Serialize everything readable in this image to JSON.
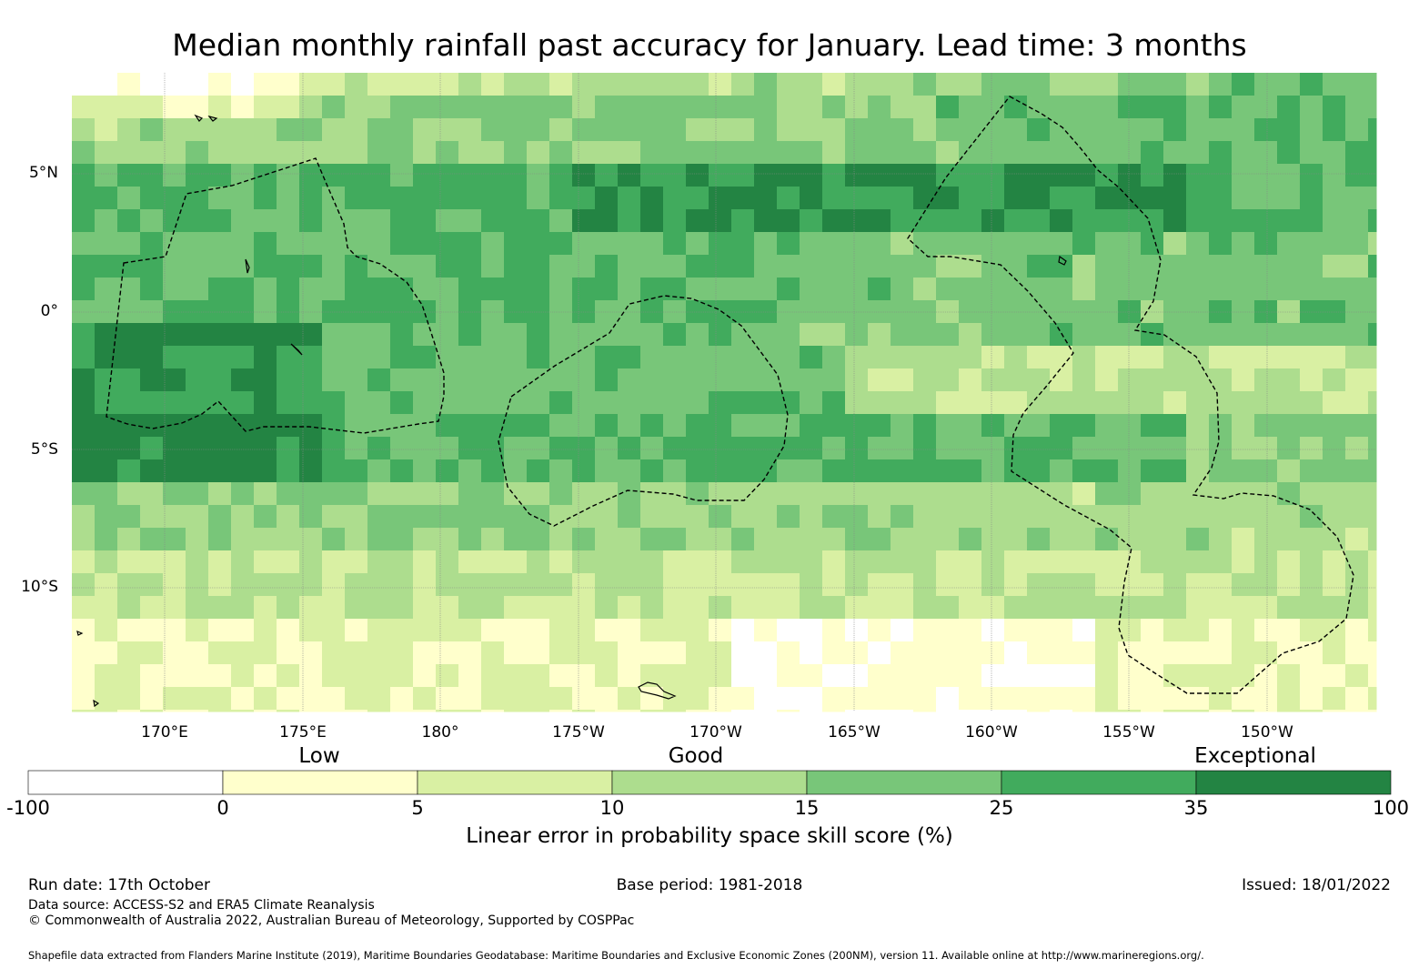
{
  "title": "Median monthly rainfall past accuracy for January. Lead time: 3 months",
  "map": {
    "lat_labels": [
      "5°N",
      "0°",
      "5°S",
      "10°S"
    ],
    "lon_labels": [
      "170°E",
      "175°E",
      "180°",
      "175°W",
      "170°W",
      "165°W",
      "160°W",
      "155°W",
      "150°W"
    ],
    "palette": [
      "#ffffff",
      "#ffffcc",
      "#d9f0a3",
      "#addd8e",
      "#78c679",
      "#41ab5d",
      "#238443"
    ],
    "grid_line_color": "#888888",
    "eez_line_color": "#000000"
  },
  "legend": {
    "categories": [
      "Low",
      "Good",
      "Exceptional"
    ],
    "ticks": [
      "-100",
      "0",
      "5",
      "10",
      "15",
      "25",
      "35",
      "100"
    ],
    "bins": [
      {
        "from": -100,
        "to": 0,
        "color": "#ffffff"
      },
      {
        "from": 0,
        "to": 5,
        "color": "#ffffcc"
      },
      {
        "from": 5,
        "to": 10,
        "color": "#d9f0a3"
      },
      {
        "from": 10,
        "to": 15,
        "color": "#addd8e"
      },
      {
        "from": 15,
        "to": 25,
        "color": "#78c679"
      },
      {
        "from": 25,
        "to": 35,
        "color": "#41ab5d"
      },
      {
        "from": 35,
        "to": 100,
        "color": "#238443"
      }
    ],
    "axis_label": "Linear error in probability space skill score (%)"
  },
  "footer": {
    "run_date": "Run date: 17th October",
    "base_period": "Base period: 1981-2018",
    "issued": "Issued: 18/01/2022",
    "data_source": "Data source: ACCESS-S2 and ERA5 Climate Reanalysis",
    "copyright": "© Commonwealth of Australia 2022, Australian Bureau of Meteorology, Supported by COSPPac",
    "shapefile": "Shapefile data extracted from Flanders Marine Institute (2019), Maritime Boundaries Geodatabase: Maritime Boundaries and Exclusive Economic Zones (200NM), version 11. Available online at http://www.marineregions.org/."
  }
}
